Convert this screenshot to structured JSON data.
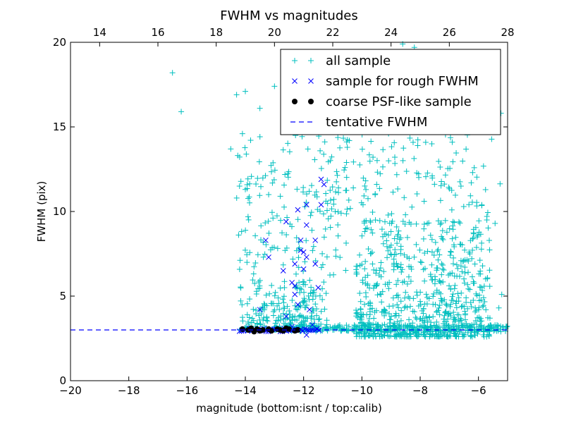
{
  "chart_data": {
    "type": "scatter",
    "title": "FWHM vs magnitudes",
    "xlabel": "magnitude (bottom:isnt / top:calib)",
    "ylabel": "FWHM (pix)",
    "xlim": [
      -20,
      -5
    ],
    "ylim": [
      0,
      20
    ],
    "top_xlim": [
      13,
      28
    ],
    "xticks": [
      -20,
      -18,
      -16,
      -14,
      -12,
      -10,
      -8,
      -6
    ],
    "xtick_labels": [
      "−20",
      "−18",
      "−16",
      "−14",
      "−12",
      "−10",
      "−8",
      "−6"
    ],
    "yticks": [
      0,
      5,
      10,
      15,
      20
    ],
    "ytick_labels": [
      "0",
      "5",
      "10",
      "15",
      "20"
    ],
    "top_xticks": [
      14,
      16,
      18,
      20,
      22,
      24,
      26,
      28
    ],
    "top_xtick_labels": [
      "14",
      "16",
      "18",
      "20",
      "22",
      "24",
      "26",
      "28"
    ],
    "legend_position": "top-right",
    "colors": {
      "all": "#00bfbf",
      "rough": "#0000ff",
      "coarse": "#000000",
      "line": "#0000ff"
    },
    "series": [
      {
        "name": "all sample",
        "marker": "plus",
        "generator": {
          "seed": 7,
          "clusters": [
            {
              "count": 700,
              "x": [
                -10.2,
                -5.6
              ],
              "y": [
                2.6,
                9.5
              ],
              "bias": "low"
            },
            {
              "count": 260,
              "x": [
                -14.2,
                -11.2
              ],
              "y": [
                3.0,
                6.0
              ],
              "bias": "low"
            },
            {
              "count": 160,
              "x": [
                -14.3,
                -10.5
              ],
              "y": [
                6.0,
                14.5
              ],
              "bias": "none"
            },
            {
              "count": 220,
              "x": [
                -11.5,
                -5.2
              ],
              "y": [
                9.0,
                19.0
              ],
              "bias": "none"
            },
            {
              "count": 260,
              "x": [
                -12.5,
                -5.0
              ],
              "y": [
                2.9,
                3.3
              ],
              "bias": "none"
            }
          ]
        },
        "points": [
          [
            -16.5,
            18.2
          ],
          [
            -16.2,
            15.9
          ],
          [
            -14.5,
            13.7
          ],
          [
            -14.3,
            16.9
          ],
          [
            -14.0,
            17.1
          ],
          [
            -14.1,
            14.6
          ],
          [
            -13.5,
            16.1
          ],
          [
            -13.0,
            17.4
          ],
          [
            -14.2,
            11.5
          ],
          [
            -14.0,
            11.3
          ],
          [
            -13.2,
            11.0
          ],
          [
            -12.8,
            10.9
          ],
          [
            -6.2,
            12.3
          ],
          [
            -6.6,
            11.5
          ],
          [
            -8.6,
            19.9
          ],
          [
            -8.2,
            19.7
          ],
          [
            -6.9,
            14.1
          ],
          [
            -7.6,
            14.0
          ],
          [
            -5.2,
            5.1
          ],
          [
            -5.3,
            4.3
          ]
        ]
      },
      {
        "name": "sample for rough FWHM",
        "marker": "x",
        "points": [
          [
            -11.4,
            11.9
          ],
          [
            -11.3,
            11.6
          ],
          [
            -11.4,
            10.4
          ],
          [
            -11.9,
            10.4
          ],
          [
            -12.2,
            10.1
          ],
          [
            -11.9,
            9.2
          ],
          [
            -12.6,
            9.4
          ],
          [
            -13.3,
            8.3
          ],
          [
            -12.1,
            8.3
          ],
          [
            -11.6,
            8.3
          ],
          [
            -12.0,
            7.6
          ],
          [
            -12.1,
            7.7
          ],
          [
            -11.9,
            7.3
          ],
          [
            -13.2,
            7.3
          ],
          [
            -12.3,
            6.9
          ],
          [
            -12.7,
            6.5
          ],
          [
            -12.0,
            6.6
          ],
          [
            -11.6,
            6.9
          ],
          [
            -12.4,
            5.8
          ],
          [
            -12.3,
            5.6
          ],
          [
            -12.3,
            5.1
          ],
          [
            -12.2,
            4.5
          ],
          [
            -11.5,
            5.5
          ],
          [
            -13.5,
            4.2
          ],
          [
            -11.8,
            4.2
          ],
          [
            -12.6,
            3.8
          ],
          [
            -11.9,
            2.7
          ],
          [
            -11.7,
            3.3
          ],
          [
            -12.4,
            3.2
          ]
        ]
      },
      {
        "name": "coarse PSF-like sample",
        "marker": "dot",
        "points": [
          [
            -14.1,
            3.05
          ],
          [
            -13.9,
            3.0
          ],
          [
            -13.8,
            3.1
          ],
          [
            -13.6,
            3.05
          ],
          [
            -13.5,
            2.95
          ],
          [
            -13.4,
            3.0
          ],
          [
            -13.2,
            3.05
          ],
          [
            -13.1,
            2.95
          ],
          [
            -12.9,
            3.05
          ],
          [
            -12.8,
            3.0
          ],
          [
            -12.7,
            2.95
          ],
          [
            -12.5,
            3.05
          ],
          [
            -12.3,
            2.95
          ],
          [
            -12.2,
            3.0
          ],
          [
            -13.7,
            2.9
          ],
          [
            -12.6,
            3.1
          ]
        ]
      }
    ],
    "line": {
      "name": "tentative FWHM",
      "y": 3.0,
      "style": "dashed"
    }
  }
}
